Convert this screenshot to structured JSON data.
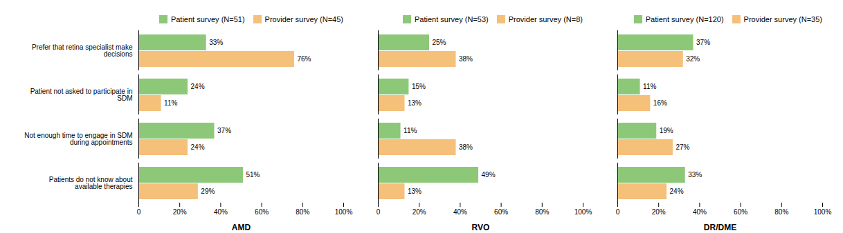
{
  "chart_data": [
    {
      "type": "bar",
      "orientation": "horizontal",
      "xlabel": "AMD",
      "categories": [
        "Prefer that retina specialist make\ndecisions",
        "Patient not asked to participate in\nSDM",
        "Not enough time to engage in SDM\nduring appointments",
        "Patients do not know about\navailable therapies"
      ],
      "series": [
        {
          "name": "Patient survey (N=51)",
          "color": "#8DC878",
          "values": [
            33,
            24,
            37,
            51
          ],
          "value_labels": [
            "33%",
            "24%",
            "37%",
            "51%"
          ]
        },
        {
          "name": "Provider survey (N=45)",
          "color": "#F5C07A",
          "values": [
            76,
            11,
            24,
            29
          ],
          "value_labels": [
            "76%",
            "11%",
            "24%",
            "29%"
          ]
        }
      ],
      "xlim": [
        0,
        100
      ],
      "xticks": [
        0,
        {
          "value": 20,
          "label": "20%"
        },
        {
          "value": 40,
          "label": "40%"
        },
        {
          "value": 60,
          "label": "60%"
        },
        {
          "value": 80,
          "label": "80%"
        },
        {
          "value": 100,
          "label": "100%"
        }
      ],
      "data_labels": true,
      "legend": "upper right",
      "grid": false
    },
    {
      "type": "bar",
      "orientation": "horizontal",
      "xlabel": "RVO",
      "categories": [
        null,
        null,
        null,
        null
      ],
      "series": [
        {
          "name": "Patient survey (N=53)",
          "color": "#8DC878",
          "values": [
            25,
            15,
            11,
            49
          ],
          "value_labels": [
            "25%",
            "15%",
            "11%",
            "49%"
          ]
        },
        {
          "name": "Provider survey (N=8)",
          "color": "#F5C07A",
          "values": [
            38,
            13,
            38,
            13
          ],
          "value_labels": [
            "38%",
            "13%",
            "38%",
            "13%"
          ]
        }
      ],
      "xlim": [
        0,
        100
      ],
      "xticks": [
        0,
        {
          "value": 20,
          "label": "20%"
        },
        {
          "value": 40,
          "label": "40%"
        },
        {
          "value": 60,
          "label": "60%"
        },
        {
          "value": 80,
          "label": "80%"
        },
        {
          "value": 100,
          "label": "100%"
        }
      ],
      "data_labels": true,
      "legend": "upper right",
      "grid": false,
      "tick_labels": "x"
    },
    {
      "type": "bar",
      "orientation": "horizontal",
      "xlabel": "DR/DME",
      "categories": [
        null,
        null,
        null,
        null
      ],
      "series": [
        {
          "name": "Patient survey (N=120)",
          "color": "#8DC878",
          "values": [
            37,
            11,
            19,
            33
          ],
          "value_labels": [
            "37%",
            "11%",
            "19%",
            "33%"
          ]
        },
        {
          "name": "Provider survey (N=35)",
          "color": "#F5C07A",
          "values": [
            32,
            16,
            27,
            24
          ],
          "value_labels": [
            "32%",
            "16%",
            "27%",
            "24%"
          ]
        }
      ],
      "xlim": [
        0,
        100
      ],
      "xticks": [
        0,
        {
          "value": 20,
          "label": "20%"
        },
        {
          "value": 40,
          "label": "40%"
        },
        {
          "value": 60,
          "label": "60%"
        },
        {
          "value": 80,
          "label": "80%"
        },
        {
          "value": 100,
          "label": "100%"
        }
      ],
      "data_labels": true,
      "legend": "upper right",
      "grid": false,
      "tick_labels": "x"
    }
  ]
}
